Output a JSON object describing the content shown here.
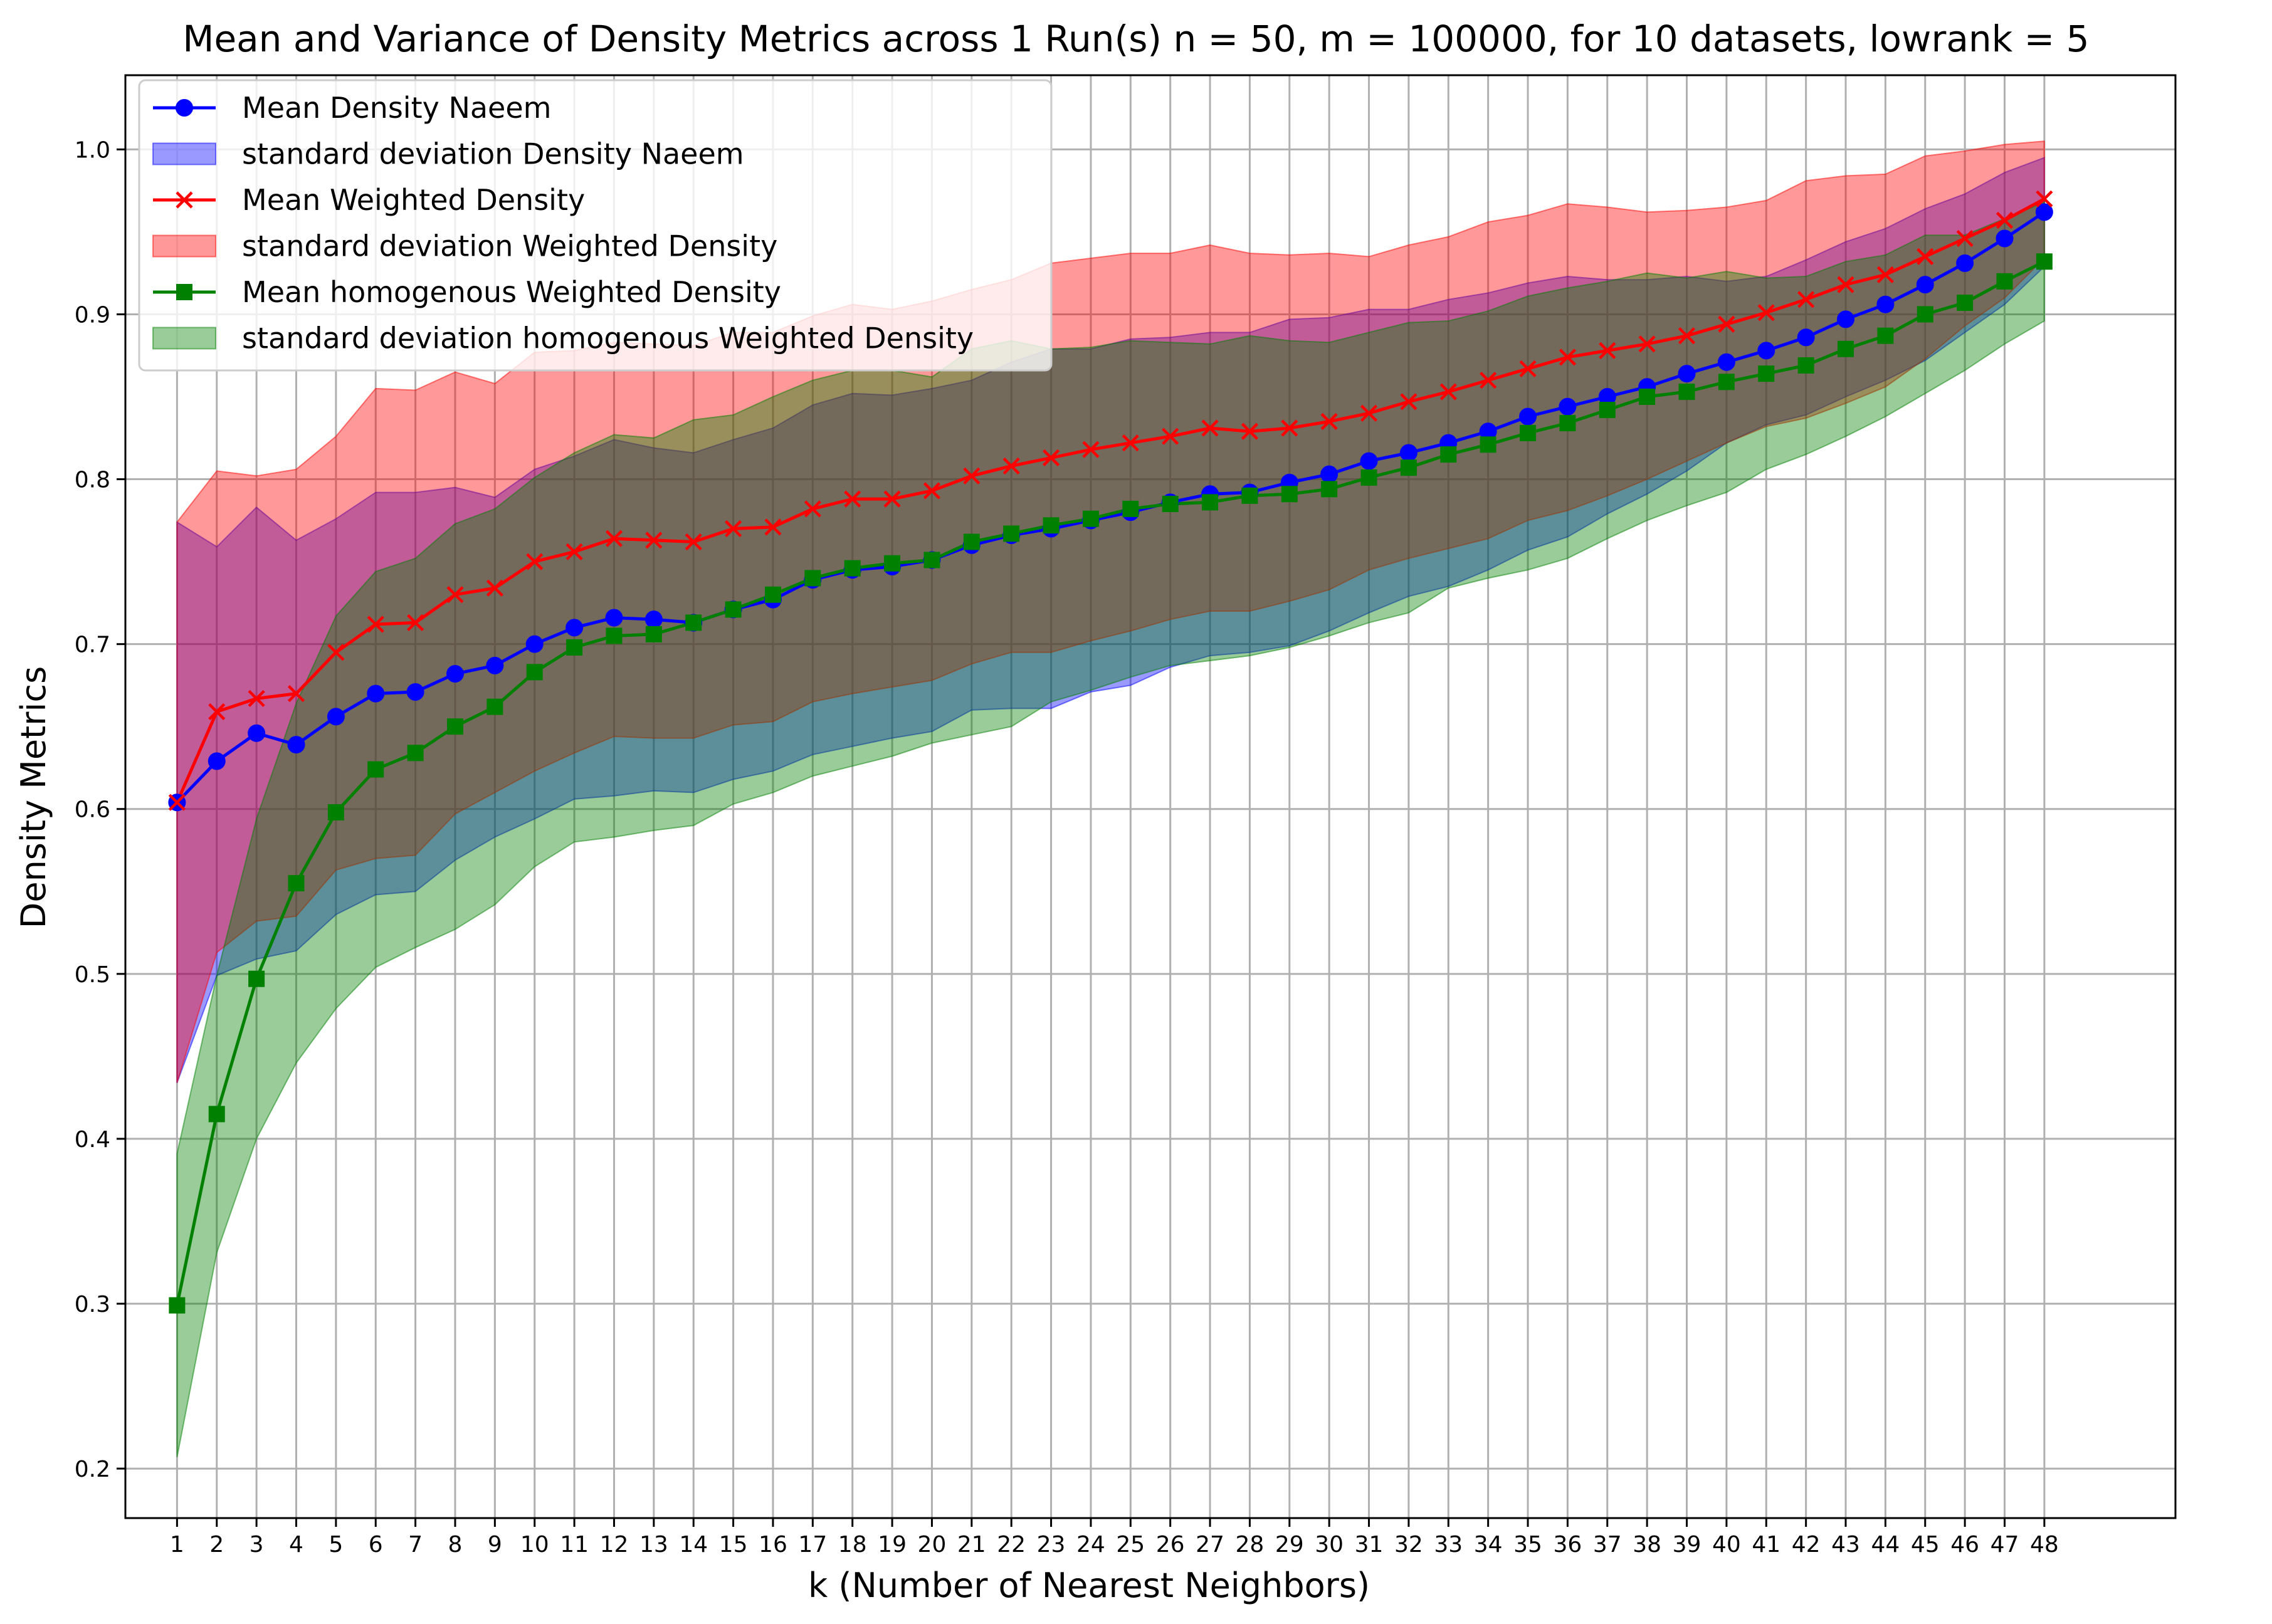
{
  "chart_data": {
    "type": "line",
    "title": "Mean and Variance of Density Metrics across 1 Run(s) n  = 50, m  = 100000, for 10 datasets, lowrank = 5",
    "xlabel": "k (Number of Nearest Neighbors)",
    "ylabel": "Density Metrics",
    "x": [
      1,
      2,
      3,
      4,
      5,
      6,
      7,
      8,
      9,
      10,
      11,
      12,
      13,
      14,
      15,
      16,
      17,
      18,
      19,
      20,
      21,
      22,
      23,
      24,
      25,
      26,
      27,
      28,
      29,
      30,
      31,
      32,
      33,
      34,
      35,
      36,
      37,
      38,
      39,
      40,
      41,
      42,
      43,
      44,
      45,
      46,
      47,
      48
    ],
    "xlim": [
      -0.3,
      51.3
    ],
    "ylim": [
      0.17,
      1.045
    ],
    "yticks": [
      0.2,
      0.3,
      0.4,
      0.5,
      0.6,
      0.7,
      0.8,
      0.9,
      1.0
    ],
    "ytick_labels": [
      "0.2",
      "0.3",
      "0.4",
      "0.5",
      "0.6",
      "0.7",
      "0.8",
      "0.9",
      "1.0"
    ],
    "grid": true,
    "legend_position": "top-left",
    "series": [
      {
        "name": "Mean Density Naeem",
        "band_name": "standard deviation Density Naeem",
        "color": "#0000ff",
        "band_color": "#0000ff",
        "marker": "circle",
        "values": [
          0.604,
          0.629,
          0.646,
          0.639,
          0.656,
          0.67,
          0.671,
          0.682,
          0.687,
          0.7,
          0.71,
          0.716,
          0.715,
          0.713,
          0.721,
          0.727,
          0.739,
          0.745,
          0.747,
          0.751,
          0.76,
          0.766,
          0.77,
          0.775,
          0.78,
          0.786,
          0.791,
          0.792,
          0.798,
          0.803,
          0.811,
          0.816,
          0.822,
          0.829,
          0.838,
          0.844,
          0.85,
          0.856,
          0.864,
          0.871,
          0.878,
          0.886,
          0.897,
          0.906,
          0.918,
          0.931,
          0.946,
          0.962
        ],
        "lower": [
          0.434,
          0.499,
          0.509,
          0.514,
          0.536,
          0.548,
          0.55,
          0.569,
          0.583,
          0.594,
          0.606,
          0.608,
          0.611,
          0.61,
          0.618,
          0.623,
          0.633,
          0.638,
          0.643,
          0.647,
          0.66,
          0.661,
          0.661,
          0.671,
          0.675,
          0.686,
          0.693,
          0.695,
          0.699,
          0.708,
          0.719,
          0.729,
          0.735,
          0.745,
          0.757,
          0.765,
          0.779,
          0.791,
          0.805,
          0.822,
          0.833,
          0.839,
          0.85,
          0.86,
          0.872,
          0.889,
          0.906,
          0.929
        ],
        "upper": [
          0.774,
          0.759,
          0.783,
          0.763,
          0.776,
          0.792,
          0.792,
          0.795,
          0.789,
          0.806,
          0.814,
          0.824,
          0.819,
          0.816,
          0.824,
          0.831,
          0.845,
          0.852,
          0.851,
          0.855,
          0.86,
          0.871,
          0.879,
          0.879,
          0.885,
          0.886,
          0.889,
          0.889,
          0.897,
          0.898,
          0.903,
          0.903,
          0.909,
          0.913,
          0.919,
          0.923,
          0.921,
          0.921,
          0.923,
          0.92,
          0.923,
          0.933,
          0.944,
          0.952,
          0.964,
          0.973,
          0.986,
          0.995
        ]
      },
      {
        "name": "Mean Weighted Density",
        "band_name": "standard deviation Weighted Density",
        "color": "#ff0000",
        "band_color": "#ff0000",
        "marker": "x",
        "values": [
          0.604,
          0.659,
          0.667,
          0.67,
          0.695,
          0.712,
          0.713,
          0.73,
          0.734,
          0.75,
          0.756,
          0.764,
          0.763,
          0.762,
          0.77,
          0.771,
          0.782,
          0.788,
          0.788,
          0.793,
          0.802,
          0.808,
          0.813,
          0.818,
          0.822,
          0.826,
          0.831,
          0.829,
          0.831,
          0.835,
          0.84,
          0.847,
          0.853,
          0.86,
          0.867,
          0.874,
          0.878,
          0.882,
          0.887,
          0.894,
          0.901,
          0.909,
          0.918,
          0.924,
          0.935,
          0.946,
          0.957,
          0.97
        ],
        "lower": [
          0.434,
          0.513,
          0.532,
          0.535,
          0.563,
          0.57,
          0.572,
          0.597,
          0.61,
          0.623,
          0.634,
          0.644,
          0.643,
          0.643,
          0.651,
          0.653,
          0.665,
          0.67,
          0.674,
          0.678,
          0.688,
          0.695,
          0.695,
          0.702,
          0.708,
          0.715,
          0.72,
          0.72,
          0.726,
          0.733,
          0.745,
          0.752,
          0.758,
          0.764,
          0.775,
          0.781,
          0.79,
          0.8,
          0.811,
          0.822,
          0.832,
          0.837,
          0.846,
          0.856,
          0.873,
          0.893,
          0.91,
          0.934
        ],
        "upper": [
          0.774,
          0.805,
          0.802,
          0.806,
          0.826,
          0.855,
          0.854,
          0.865,
          0.858,
          0.877,
          0.878,
          0.883,
          0.882,
          0.881,
          0.889,
          0.889,
          0.899,
          0.906,
          0.903,
          0.908,
          0.915,
          0.921,
          0.931,
          0.934,
          0.937,
          0.937,
          0.942,
          0.937,
          0.936,
          0.937,
          0.935,
          0.942,
          0.947,
          0.956,
          0.96,
          0.967,
          0.965,
          0.962,
          0.963,
          0.965,
          0.969,
          0.981,
          0.984,
          0.985,
          0.996,
          0.999,
          1.003,
          1.005
        ]
      },
      {
        "name": "Mean homogenous Weighted Density",
        "band_name": "standard deviation homogenous Weighted Density",
        "color": "#008000",
        "band_color": "#008000",
        "marker": "square",
        "values": [
          0.299,
          0.415,
          0.497,
          0.555,
          0.598,
          0.624,
          0.634,
          0.65,
          0.662,
          0.683,
          0.698,
          0.705,
          0.706,
          0.713,
          0.721,
          0.73,
          0.74,
          0.746,
          0.749,
          0.751,
          0.762,
          0.767,
          0.772,
          0.776,
          0.782,
          0.785,
          0.786,
          0.79,
          0.791,
          0.794,
          0.801,
          0.807,
          0.815,
          0.821,
          0.828,
          0.834,
          0.842,
          0.85,
          0.853,
          0.859,
          0.864,
          0.869,
          0.879,
          0.887,
          0.9,
          0.907,
          0.92,
          0.932
        ],
        "lower": [
          0.207,
          0.331,
          0.4,
          0.446,
          0.479,
          0.504,
          0.516,
          0.527,
          0.542,
          0.565,
          0.58,
          0.583,
          0.587,
          0.59,
          0.603,
          0.61,
          0.62,
          0.626,
          0.632,
          0.64,
          0.645,
          0.65,
          0.665,
          0.672,
          0.68,
          0.687,
          0.69,
          0.693,
          0.698,
          0.705,
          0.713,
          0.719,
          0.734,
          0.74,
          0.745,
          0.752,
          0.764,
          0.775,
          0.784,
          0.792,
          0.806,
          0.815,
          0.826,
          0.838,
          0.852,
          0.866,
          0.882,
          0.896
        ],
        "upper": [
          0.391,
          0.499,
          0.594,
          0.664,
          0.717,
          0.744,
          0.752,
          0.773,
          0.782,
          0.801,
          0.816,
          0.827,
          0.825,
          0.836,
          0.839,
          0.85,
          0.86,
          0.866,
          0.866,
          0.862,
          0.879,
          0.884,
          0.879,
          0.88,
          0.884,
          0.883,
          0.882,
          0.887,
          0.884,
          0.883,
          0.889,
          0.895,
          0.896,
          0.902,
          0.911,
          0.916,
          0.92,
          0.925,
          0.922,
          0.926,
          0.922,
          0.923,
          0.932,
          0.936,
          0.948,
          0.948,
          0.958,
          0.968
        ]
      }
    ]
  }
}
